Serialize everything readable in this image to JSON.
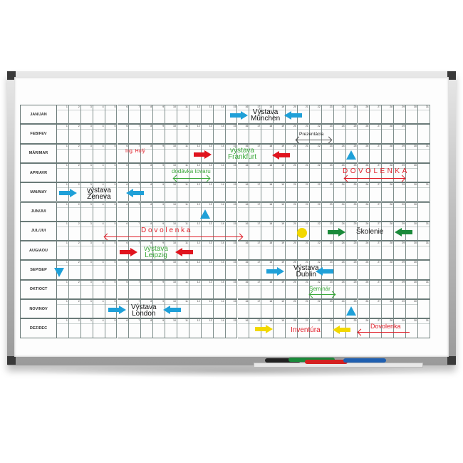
{
  "months": [
    {
      "label": "JAN/JAN",
      "days": 31
    },
    {
      "label": "FEB/FEV",
      "days": 29
    },
    {
      "label": "MÄR/MAR",
      "days": 31
    },
    {
      "label": "APR/AVR",
      "days": 30
    },
    {
      "label": "MAI/MAY",
      "days": 31
    },
    {
      "label": "JUN/JUI",
      "days": 30
    },
    {
      "label": "JUL/JUI",
      "days": 31
    },
    {
      "label": "AUG/AOU",
      "days": 31
    },
    {
      "label": "SEP/SEP",
      "days": 30
    },
    {
      "label": "OKT/OCT",
      "days": 31
    },
    {
      "label": "NOV/NOV",
      "days": 30
    },
    {
      "label": "DEZ/DEC",
      "days": 31
    }
  ],
  "annotations": {
    "munchen": "Výstava\nMünchen",
    "prezentacia": "Prezentácia",
    "ing_holy": "Ing. Holý",
    "frankfurt": "výstava\nFrankfurt",
    "dodavka": "dodávka tovaru",
    "dovolenka_apr": "DOVOLENKA",
    "zeneva": "výstava\nŽeneva",
    "dovolenka_jul": "D o v o l e n k a",
    "skolenie": "Školenie",
    "leipzig": "výstava\nLeipzig",
    "dublin": "Výstava\nDublin",
    "seminar": "Seminár",
    "london": "Výstava\nLondon",
    "inventura": "Inventúra",
    "dovolenka_dec": "Dovolenka"
  },
  "colors": {
    "blue": "#1fa0d8",
    "red": "#e0141e",
    "green": "#1a8a3a",
    "yellow": "#f2d800",
    "text_green": "#3aa83a",
    "text_red": "#e0202a"
  },
  "markers": [
    "black",
    "green",
    "red",
    "blue"
  ]
}
